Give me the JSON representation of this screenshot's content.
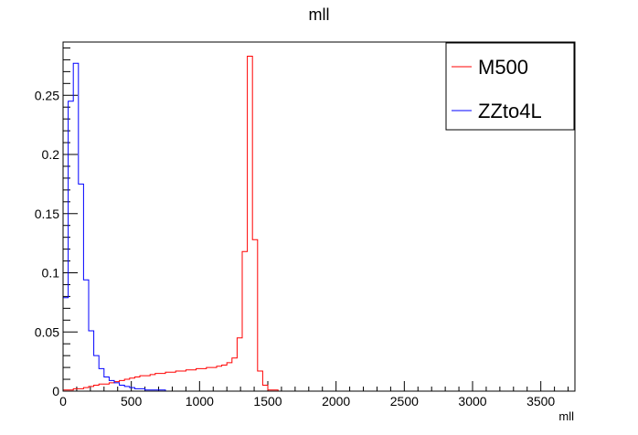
{
  "chart_data": {
    "type": "histogram",
    "title": "mll",
    "xlabel": "mll",
    "ylabel": "",
    "xlim": [
      0,
      3750
    ],
    "ylim": [
      0,
      0.295
    ],
    "bin_width": 37.5,
    "x_ticks": [
      0,
      500,
      1000,
      1500,
      2000,
      2500,
      3000,
      3500
    ],
    "y_ticks": [
      0,
      0.05,
      0.1,
      0.15,
      0.2,
      0.25
    ],
    "legend_position": "top-right",
    "series": [
      {
        "name": "M500",
        "color": "#ff0000",
        "bin_start": 0,
        "values": [
          0.001,
          0.001,
          0.002,
          0.002,
          0.003,
          0.004,
          0.005,
          0.006,
          0.006,
          0.007,
          0.008,
          0.009,
          0.01,
          0.011,
          0.012,
          0.013,
          0.013,
          0.014,
          0.015,
          0.015,
          0.016,
          0.016,
          0.017,
          0.017,
          0.018,
          0.018,
          0.019,
          0.019,
          0.02,
          0.02,
          0.021,
          0.022,
          0.024,
          0.028,
          0.045,
          0.118,
          0.283,
          0.128,
          0.017,
          0.005,
          0.001,
          0.001
        ]
      },
      {
        "name": "ZZto4L",
        "color": "#0000ff",
        "bin_start": 0,
        "values": [
          0.079,
          0.245,
          0.277,
          0.175,
          0.094,
          0.051,
          0.03,
          0.019,
          0.012,
          0.009,
          0.007,
          0.005,
          0.004,
          0.003,
          0.002,
          0.002,
          0.001,
          0.001,
          0.001,
          0.001
        ]
      }
    ]
  }
}
